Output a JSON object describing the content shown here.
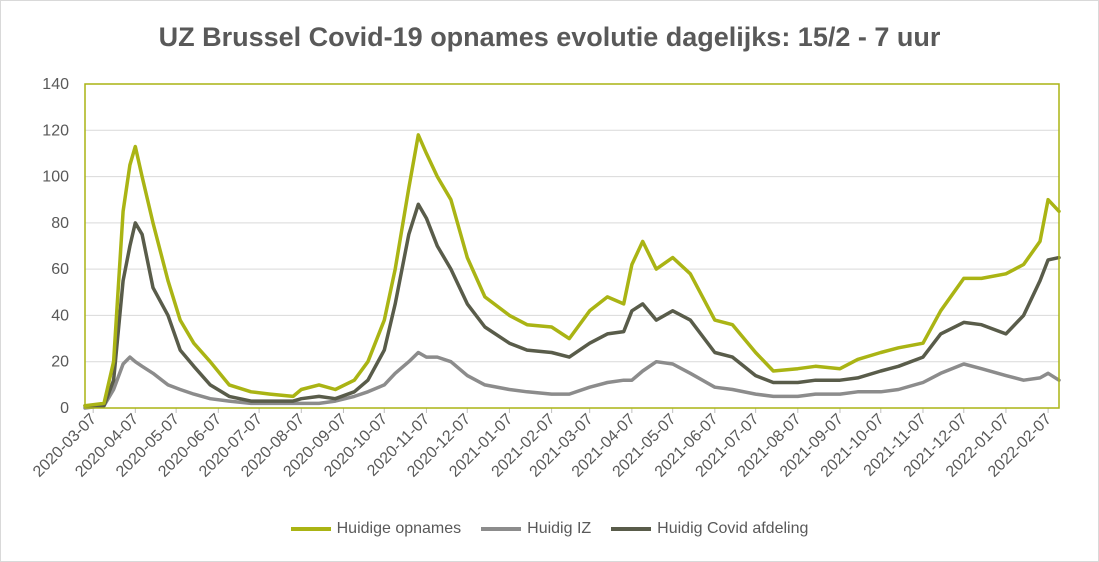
{
  "chart_data": {
    "type": "line",
    "title": "UZ Brussel Covid-19 opnames evolutie dagelijks: 15/2 - 7 uur",
    "xlabel": "",
    "ylabel": "",
    "ylim": [
      0,
      140
    ],
    "yticks": [
      "0",
      "20",
      "40",
      "60",
      "80",
      "100",
      "120",
      "140"
    ],
    "xtick_labels": [
      "2020-03-07",
      "2020-04-07",
      "2020-05-07",
      "2020-06-07",
      "2020-07-07",
      "2020-08-07",
      "2020-09-07",
      "2020-10-07",
      "2020-11-07",
      "2020-12-07",
      "2021-01-07",
      "2021-02-07",
      "2021-03-07",
      "2021-04-07",
      "2021-05-07",
      "2021-06-07",
      "2021-07-07",
      "2021-08-07",
      "2021-09-07",
      "2021-10-07",
      "2021-11-07",
      "2021-12-07",
      "2022-01-07",
      "2022-02-07"
    ],
    "x": [
      "2020-03-01",
      "2020-03-15",
      "2020-03-22",
      "2020-03-29",
      "2020-04-03",
      "2020-04-07",
      "2020-04-12",
      "2020-04-20",
      "2020-05-01",
      "2020-05-10",
      "2020-05-20",
      "2020-06-01",
      "2020-06-15",
      "2020-07-01",
      "2020-07-15",
      "2020-08-01",
      "2020-08-07",
      "2020-08-20",
      "2020-09-01",
      "2020-09-15",
      "2020-09-25",
      "2020-10-07",
      "2020-10-15",
      "2020-10-25",
      "2020-11-01",
      "2020-11-07",
      "2020-11-15",
      "2020-11-25",
      "2020-12-07",
      "2020-12-20",
      "2021-01-07",
      "2021-01-20",
      "2021-02-07",
      "2021-02-20",
      "2021-03-07",
      "2021-03-20",
      "2021-04-01",
      "2021-04-07",
      "2021-04-15",
      "2021-04-25",
      "2021-05-07",
      "2021-05-20",
      "2021-06-07",
      "2021-06-20",
      "2021-07-07",
      "2021-07-20",
      "2021-08-07",
      "2021-08-20",
      "2021-09-07",
      "2021-09-20",
      "2021-10-07",
      "2021-10-20",
      "2021-11-07",
      "2021-11-20",
      "2021-12-07",
      "2021-12-20",
      "2022-01-07",
      "2022-01-20",
      "2022-02-01",
      "2022-02-07",
      "2022-02-15"
    ],
    "series": [
      {
        "name": "Huidige opnames",
        "color": "#aab414",
        "values": [
          1,
          2,
          20,
          85,
          105,
          113,
          100,
          80,
          55,
          38,
          28,
          20,
          10,
          7,
          6,
          5,
          8,
          10,
          8,
          12,
          20,
          38,
          60,
          95,
          118,
          110,
          100,
          90,
          65,
          48,
          40,
          36,
          35,
          30,
          42,
          48,
          45,
          62,
          72,
          60,
          65,
          58,
          38,
          36,
          24,
          16,
          17,
          18,
          17,
          21,
          24,
          26,
          28,
          42,
          56,
          56,
          58,
          62,
          72,
          90,
          85
        ]
      },
      {
        "name": "Huidig IZ",
        "color": "#8c8c8c",
        "values": [
          0,
          1,
          8,
          19,
          22,
          20,
          18,
          15,
          10,
          8,
          6,
          4,
          3,
          2,
          2,
          2,
          2,
          2,
          3,
          5,
          7,
          10,
          15,
          20,
          24,
          22,
          22,
          20,
          14,
          10,
          8,
          7,
          6,
          6,
          9,
          11,
          12,
          12,
          16,
          20,
          19,
          15,
          9,
          8,
          6,
          5,
          5,
          6,
          6,
          7,
          7,
          8,
          11,
          15,
          19,
          17,
          14,
          12,
          13,
          15,
          12
        ]
      },
      {
        "name": "Huidig Covid afdeling",
        "color": "#595c4a",
        "values": [
          1,
          1,
          12,
          55,
          70,
          80,
          75,
          52,
          40,
          25,
          18,
          10,
          5,
          3,
          3,
          3,
          4,
          5,
          4,
          7,
          12,
          25,
          45,
          75,
          88,
          82,
          70,
          60,
          45,
          35,
          28,
          25,
          24,
          22,
          28,
          32,
          33,
          42,
          45,
          38,
          42,
          38,
          24,
          22,
          14,
          11,
          11,
          12,
          12,
          13,
          16,
          18,
          22,
          32,
          37,
          36,
          32,
          40,
          55,
          64,
          65
        ]
      }
    ],
    "legend_position": "bottom",
    "grid": true,
    "plot_border_color": "#aab414"
  }
}
